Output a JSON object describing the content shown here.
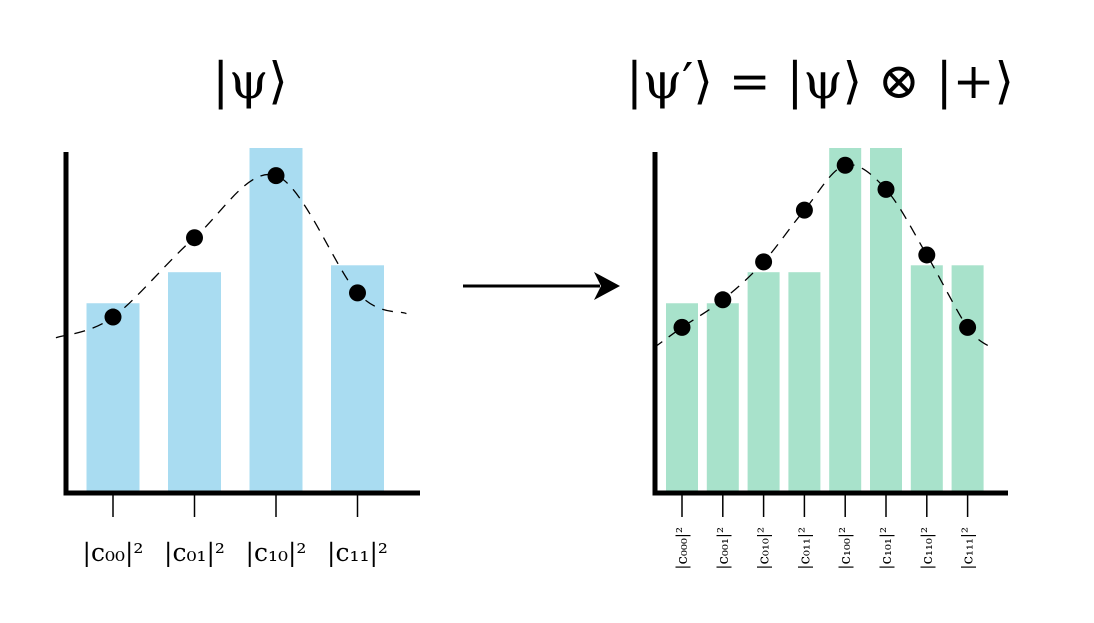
{
  "left": {
    "title": "|ψ⟩",
    "chart_data": {
      "type": "bar",
      "categories": [
        "|c₀₀|²",
        "|c₀₁|²",
        "|c₁₀|²",
        "|c₁₁|²"
      ],
      "values": [
        0.55,
        0.64,
        1.0,
        0.66
      ],
      "points": [
        0.51,
        0.74,
        0.92,
        0.58
      ],
      "ylim": [
        0,
        1
      ],
      "bar_color": "#a9dcf1"
    }
  },
  "right": {
    "title": "|ψ′⟩ = |ψ⟩ ⊗ |+⟩",
    "chart_data": {
      "type": "bar",
      "categories": [
        "|c₀₀₀|²",
        "|c₀₀₁|²",
        "|c₀₁₀|²",
        "|c₀₁₁|²",
        "|c₁₀₀|²",
        "|c₁₀₁|²",
        "|c₁₁₀|²",
        "|c₁₁₁|²"
      ],
      "values": [
        0.55,
        0.55,
        0.64,
        0.64,
        1.0,
        1.0,
        0.66,
        0.66
      ],
      "points": [
        0.48,
        0.56,
        0.67,
        0.82,
        0.95,
        0.88,
        0.69,
        0.48
      ],
      "ylim": [
        0,
        1
      ],
      "bar_color": "#a8e2cb"
    }
  },
  "arrow": "transform-arrow"
}
